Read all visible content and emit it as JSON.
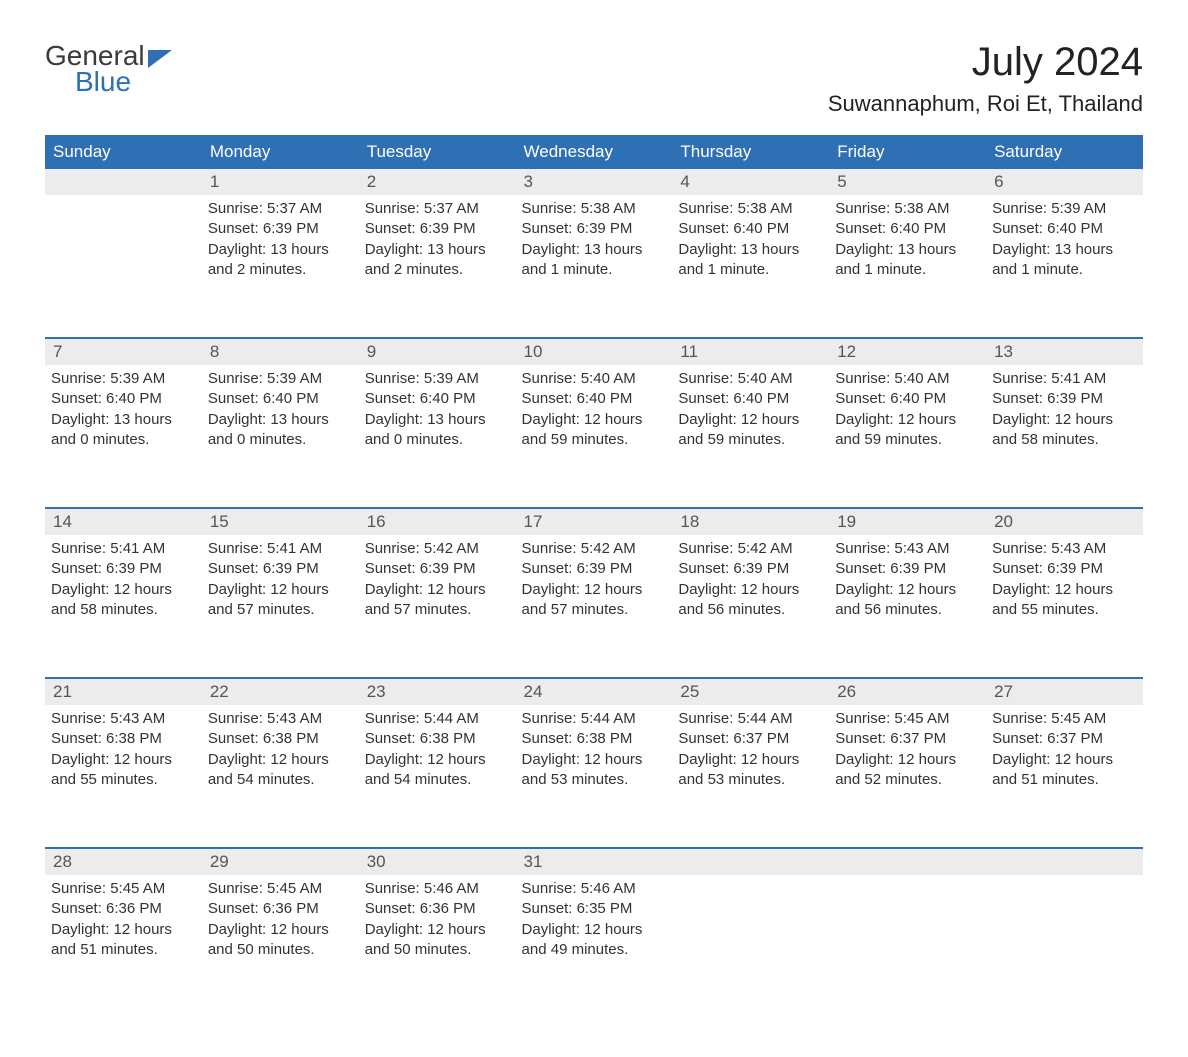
{
  "logo": {
    "word1": "General",
    "word2": "Blue"
  },
  "title": "July 2024",
  "location": "Suwannaphum, Roi Et, Thailand",
  "colors": {
    "header_bg": "#2f6fb3",
    "header_text": "#ffffff",
    "daynum_bg": "#ececec",
    "daynum_text": "#555555",
    "body_text": "#333333",
    "rule": "#2f6fb3",
    "page_bg": "#ffffff"
  },
  "typography": {
    "month_title_fontsize": 40,
    "location_fontsize": 22,
    "dow_fontsize": 17,
    "daynum_fontsize": 17,
    "cell_fontsize": 15
  },
  "daysOfWeek": [
    "Sunday",
    "Monday",
    "Tuesday",
    "Wednesday",
    "Thursday",
    "Friday",
    "Saturday"
  ],
  "weeks": [
    [
      null,
      {
        "n": "1",
        "sr": "Sunrise: 5:37 AM",
        "ss": "Sunset: 6:39 PM",
        "dl": "Daylight: 13 hours and 2 minutes."
      },
      {
        "n": "2",
        "sr": "Sunrise: 5:37 AM",
        "ss": "Sunset: 6:39 PM",
        "dl": "Daylight: 13 hours and 2 minutes."
      },
      {
        "n": "3",
        "sr": "Sunrise: 5:38 AM",
        "ss": "Sunset: 6:39 PM",
        "dl": "Daylight: 13 hours and 1 minute."
      },
      {
        "n": "4",
        "sr": "Sunrise: 5:38 AM",
        "ss": "Sunset: 6:40 PM",
        "dl": "Daylight: 13 hours and 1 minute."
      },
      {
        "n": "5",
        "sr": "Sunrise: 5:38 AM",
        "ss": "Sunset: 6:40 PM",
        "dl": "Daylight: 13 hours and 1 minute."
      },
      {
        "n": "6",
        "sr": "Sunrise: 5:39 AM",
        "ss": "Sunset: 6:40 PM",
        "dl": "Daylight: 13 hours and 1 minute."
      }
    ],
    [
      {
        "n": "7",
        "sr": "Sunrise: 5:39 AM",
        "ss": "Sunset: 6:40 PM",
        "dl": "Daylight: 13 hours and 0 minutes."
      },
      {
        "n": "8",
        "sr": "Sunrise: 5:39 AM",
        "ss": "Sunset: 6:40 PM",
        "dl": "Daylight: 13 hours and 0 minutes."
      },
      {
        "n": "9",
        "sr": "Sunrise: 5:39 AM",
        "ss": "Sunset: 6:40 PM",
        "dl": "Daylight: 13 hours and 0 minutes."
      },
      {
        "n": "10",
        "sr": "Sunrise: 5:40 AM",
        "ss": "Sunset: 6:40 PM",
        "dl": "Daylight: 12 hours and 59 minutes."
      },
      {
        "n": "11",
        "sr": "Sunrise: 5:40 AM",
        "ss": "Sunset: 6:40 PM",
        "dl": "Daylight: 12 hours and 59 minutes."
      },
      {
        "n": "12",
        "sr": "Sunrise: 5:40 AM",
        "ss": "Sunset: 6:40 PM",
        "dl": "Daylight: 12 hours and 59 minutes."
      },
      {
        "n": "13",
        "sr": "Sunrise: 5:41 AM",
        "ss": "Sunset: 6:39 PM",
        "dl": "Daylight: 12 hours and 58 minutes."
      }
    ],
    [
      {
        "n": "14",
        "sr": "Sunrise: 5:41 AM",
        "ss": "Sunset: 6:39 PM",
        "dl": "Daylight: 12 hours and 58 minutes."
      },
      {
        "n": "15",
        "sr": "Sunrise: 5:41 AM",
        "ss": "Sunset: 6:39 PM",
        "dl": "Daylight: 12 hours and 57 minutes."
      },
      {
        "n": "16",
        "sr": "Sunrise: 5:42 AM",
        "ss": "Sunset: 6:39 PM",
        "dl": "Daylight: 12 hours and 57 minutes."
      },
      {
        "n": "17",
        "sr": "Sunrise: 5:42 AM",
        "ss": "Sunset: 6:39 PM",
        "dl": "Daylight: 12 hours and 57 minutes."
      },
      {
        "n": "18",
        "sr": "Sunrise: 5:42 AM",
        "ss": "Sunset: 6:39 PM",
        "dl": "Daylight: 12 hours and 56 minutes."
      },
      {
        "n": "19",
        "sr": "Sunrise: 5:43 AM",
        "ss": "Sunset: 6:39 PM",
        "dl": "Daylight: 12 hours and 56 minutes."
      },
      {
        "n": "20",
        "sr": "Sunrise: 5:43 AM",
        "ss": "Sunset: 6:39 PM",
        "dl": "Daylight: 12 hours and 55 minutes."
      }
    ],
    [
      {
        "n": "21",
        "sr": "Sunrise: 5:43 AM",
        "ss": "Sunset: 6:38 PM",
        "dl": "Daylight: 12 hours and 55 minutes."
      },
      {
        "n": "22",
        "sr": "Sunrise: 5:43 AM",
        "ss": "Sunset: 6:38 PM",
        "dl": "Daylight: 12 hours and 54 minutes."
      },
      {
        "n": "23",
        "sr": "Sunrise: 5:44 AM",
        "ss": "Sunset: 6:38 PM",
        "dl": "Daylight: 12 hours and 54 minutes."
      },
      {
        "n": "24",
        "sr": "Sunrise: 5:44 AM",
        "ss": "Sunset: 6:38 PM",
        "dl": "Daylight: 12 hours and 53 minutes."
      },
      {
        "n": "25",
        "sr": "Sunrise: 5:44 AM",
        "ss": "Sunset: 6:37 PM",
        "dl": "Daylight: 12 hours and 53 minutes."
      },
      {
        "n": "26",
        "sr": "Sunrise: 5:45 AM",
        "ss": "Sunset: 6:37 PM",
        "dl": "Daylight: 12 hours and 52 minutes."
      },
      {
        "n": "27",
        "sr": "Sunrise: 5:45 AM",
        "ss": "Sunset: 6:37 PM",
        "dl": "Daylight: 12 hours and 51 minutes."
      }
    ],
    [
      {
        "n": "28",
        "sr": "Sunrise: 5:45 AM",
        "ss": "Sunset: 6:36 PM",
        "dl": "Daylight: 12 hours and 51 minutes."
      },
      {
        "n": "29",
        "sr": "Sunrise: 5:45 AM",
        "ss": "Sunset: 6:36 PM",
        "dl": "Daylight: 12 hours and 50 minutes."
      },
      {
        "n": "30",
        "sr": "Sunrise: 5:46 AM",
        "ss": "Sunset: 6:36 PM",
        "dl": "Daylight: 12 hours and 50 minutes."
      },
      {
        "n": "31",
        "sr": "Sunrise: 5:46 AM",
        "ss": "Sunset: 6:35 PM",
        "dl": "Daylight: 12 hours and 49 minutes."
      },
      null,
      null,
      null
    ]
  ]
}
